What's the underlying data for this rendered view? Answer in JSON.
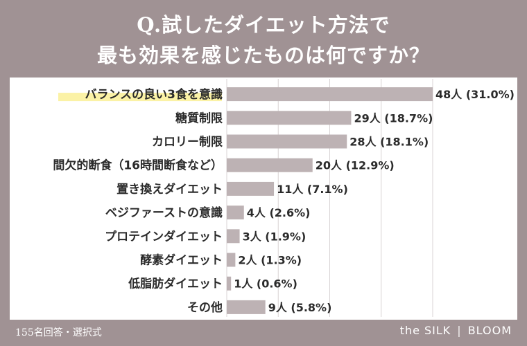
{
  "header": {
    "title_line1": "Q.試したダイエット方法で",
    "title_line2": "最も効果を感じたものは何ですか？"
  },
  "footer": {
    "note": "155名回答・選択式",
    "brand_left": "the SILK",
    "brand_sep": "|",
    "brand_right": "BLOOM"
  },
  "colors": {
    "background": "#a09294",
    "bar": "#bdb2b4",
    "highlight": "#fbf2a6"
  },
  "chart_data": {
    "type": "bar",
    "orientation": "horizontal",
    "title": "Q.試したダイエット方法で 最も効果を感じたものは何ですか？",
    "xlabel": "",
    "ylabel": "",
    "xlim": [
      0,
      48
    ],
    "grid": true,
    "highlighted_category": "バランスの良い3食を意識",
    "categories": [
      "バランスの良い3食を意識",
      "糖質制限",
      "カロリー制限",
      "間欠的断食（16時間断食など）",
      "置き換えダイエット",
      "ベジファーストの意識",
      "プロテインダイエット",
      "酵素ダイエット",
      "低脂肪ダイエット",
      "その他"
    ],
    "values": [
      48,
      29,
      28,
      20,
      11,
      4,
      3,
      2,
      1,
      9
    ],
    "percents": [
      31.0,
      18.7,
      18.1,
      12.9,
      7.1,
      2.6,
      1.9,
      1.3,
      0.6,
      5.8
    ],
    "labels": [
      "48人 (31.0%)",
      "29人 (18.7%)",
      "28人 (18.1%)",
      "20人 (12.9%)",
      "11人 (7.1%)",
      "4人 (2.6%)",
      "3人 (1.9%)",
      "2人 (1.3%)",
      "1人 (0.6%)",
      "9人 (5.8%)"
    ]
  }
}
